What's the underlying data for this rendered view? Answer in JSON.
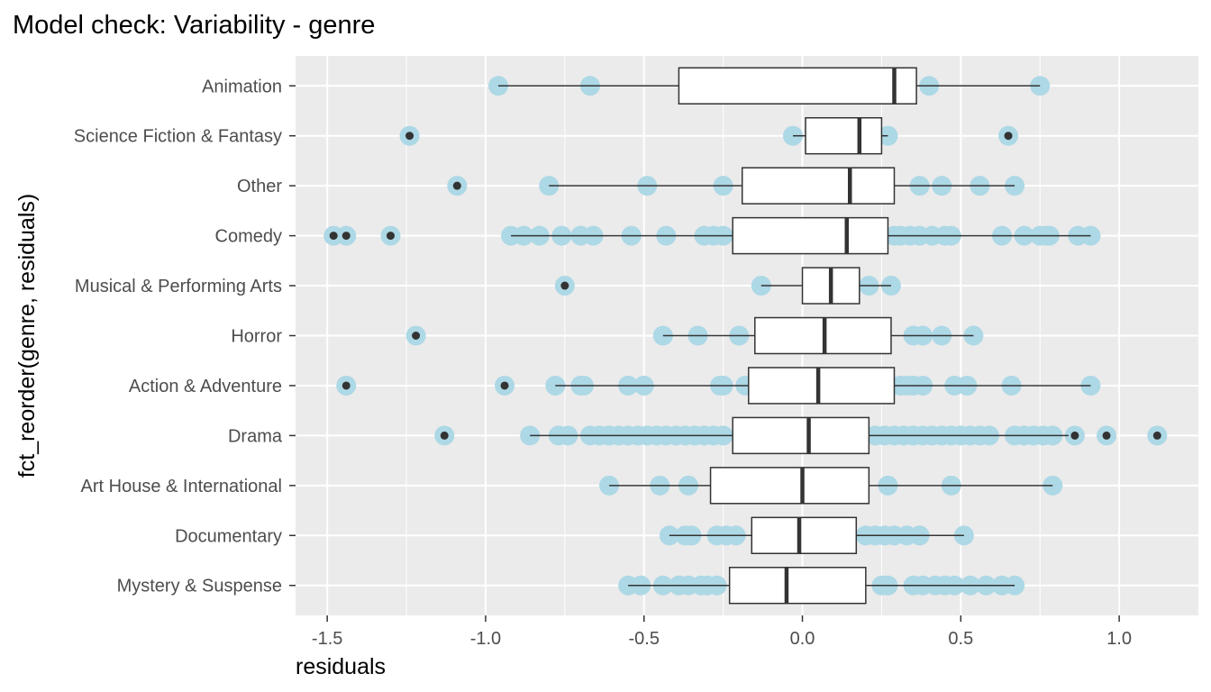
{
  "chart_data": {
    "type": "boxplot",
    "title": "Model check: Variability - genre",
    "xlabel": "residuals",
    "ylabel": "fct_reorder(genre, residuals)",
    "xlim": [
      -1.6,
      1.25
    ],
    "xticks": [
      -1.5,
      -1.0,
      -0.5,
      0.0,
      0.5,
      1.0
    ],
    "xtick_labels": [
      "-1.5",
      "-1.0",
      "-0.5",
      "0.0",
      "0.5",
      "1.0"
    ],
    "grid": true,
    "colors": {
      "panel": "#ebebeb",
      "grid": "#ffffff",
      "points": "#add8e6",
      "box_fill": "#ffffff",
      "box_line": "#333333",
      "outlier": "#333333"
    },
    "categories": [
      "Animation",
      "Science Fiction & Fantasy",
      "Other",
      "Comedy",
      "Musical & Performing Arts",
      "Horror",
      "Action & Adventure",
      "Drama",
      "Art House & International",
      "Documentary",
      "Mystery & Suspense"
    ],
    "boxes": [
      {
        "category": "Animation",
        "whisker_low": -0.96,
        "q1": -0.39,
        "median": 0.29,
        "q3": 0.36,
        "whisker_high": 0.75,
        "outliers": []
      },
      {
        "category": "Science Fiction & Fantasy",
        "whisker_low": -0.03,
        "q1": 0.01,
        "median": 0.18,
        "q3": 0.25,
        "whisker_high": 0.27,
        "outliers": [
          -1.24,
          0.65
        ]
      },
      {
        "category": "Other",
        "whisker_low": -0.8,
        "q1": -0.19,
        "median": 0.15,
        "q3": 0.29,
        "whisker_high": 0.67,
        "outliers": [
          -1.09
        ]
      },
      {
        "category": "Comedy",
        "whisker_low": -0.92,
        "q1": -0.22,
        "median": 0.14,
        "q3": 0.27,
        "whisker_high": 0.91,
        "outliers": [
          -1.48,
          -1.44,
          -1.3
        ]
      },
      {
        "category": "Musical & Performing Arts",
        "whisker_low": -0.13,
        "q1": 0.0,
        "median": 0.09,
        "q3": 0.18,
        "whisker_high": 0.28,
        "outliers": [
          -0.75
        ]
      },
      {
        "category": "Horror",
        "whisker_low": -0.44,
        "q1": -0.15,
        "median": 0.07,
        "q3": 0.28,
        "whisker_high": 0.54,
        "outliers": [
          -1.22
        ]
      },
      {
        "category": "Action & Adventure",
        "whisker_low": -0.78,
        "q1": -0.17,
        "median": 0.05,
        "q3": 0.29,
        "whisker_high": 0.91,
        "outliers": [
          -1.44,
          -0.94
        ]
      },
      {
        "category": "Drama",
        "whisker_low": -0.86,
        "q1": -0.22,
        "median": 0.02,
        "q3": 0.21,
        "whisker_high": 0.84,
        "outliers": [
          -1.13,
          0.86,
          0.96,
          1.12
        ]
      },
      {
        "category": "Art House & International",
        "whisker_low": -0.61,
        "q1": -0.29,
        "median": 0.0,
        "q3": 0.21,
        "whisker_high": 0.79,
        "outliers": []
      },
      {
        "category": "Documentary",
        "whisker_low": -0.42,
        "q1": -0.16,
        "median": -0.01,
        "q3": 0.17,
        "whisker_high": 0.51,
        "outliers": []
      },
      {
        "category": "Mystery & Suspense",
        "whisker_low": -0.55,
        "q1": -0.23,
        "median": -0.05,
        "q3": 0.2,
        "whisker_high": 0.67,
        "outliers": []
      }
    ],
    "points": [
      {
        "category": "Animation",
        "x": [
          -0.96,
          -0.67,
          0.4,
          0.75
        ]
      },
      {
        "category": "Science Fiction & Fantasy",
        "x": [
          -1.24,
          -0.03,
          0.27,
          0.65
        ]
      },
      {
        "category": "Other",
        "x": [
          -1.09,
          -0.8,
          -0.49,
          -0.25,
          0.37,
          0.44,
          0.56,
          0.67
        ]
      },
      {
        "category": "Comedy",
        "x": [
          -1.48,
          -1.44,
          -1.3,
          -0.92,
          -0.88,
          -0.83,
          -0.76,
          -0.7,
          -0.66,
          -0.54,
          -0.43,
          -0.31,
          -0.28,
          -0.25,
          0.29,
          0.31,
          0.34,
          0.37,
          0.41,
          0.45,
          0.47,
          0.63,
          0.7,
          0.75,
          0.77,
          0.78,
          0.87,
          0.91
        ]
      },
      {
        "category": "Musical & Performing Arts",
        "x": [
          -0.75,
          -0.13,
          0.21,
          0.28
        ]
      },
      {
        "category": "Horror",
        "x": [
          -1.22,
          -0.44,
          -0.33,
          -0.2,
          0.35,
          0.38,
          0.44,
          0.54
        ]
      },
      {
        "category": "Action & Adventure",
        "x": [
          -1.44,
          -0.94,
          -0.78,
          -0.7,
          -0.69,
          -0.55,
          -0.5,
          -0.26,
          -0.25,
          -0.18,
          0.31,
          0.33,
          0.35,
          0.38,
          0.48,
          0.52,
          0.66,
          0.91
        ]
      },
      {
        "category": "Drama",
        "x": [
          -1.13,
          -0.86,
          -0.77,
          -0.74,
          -0.67,
          -0.64,
          -0.61,
          -0.58,
          -0.55,
          -0.52,
          -0.49,
          -0.46,
          -0.43,
          -0.4,
          -0.37,
          -0.34,
          -0.31,
          -0.28,
          -0.25,
          0.23,
          0.26,
          0.29,
          0.32,
          0.35,
          0.38,
          0.41,
          0.44,
          0.47,
          0.5,
          0.53,
          0.56,
          0.59,
          0.67,
          0.7,
          0.73,
          0.76,
          0.79,
          0.86,
          0.96,
          1.12
        ]
      },
      {
        "category": "Art House & International",
        "x": [
          -0.61,
          -0.45,
          -0.36,
          0.27,
          0.47,
          0.79
        ]
      },
      {
        "category": "Documentary",
        "x": [
          -0.42,
          -0.37,
          -0.35,
          -0.27,
          -0.24,
          -0.21,
          0.2,
          0.23,
          0.26,
          0.29,
          0.33,
          0.37,
          0.51
        ]
      },
      {
        "category": "Mystery & Suspense",
        "x": [
          -0.55,
          -0.51,
          -0.44,
          -0.39,
          -0.36,
          -0.32,
          -0.3,
          -0.27,
          0.25,
          0.27,
          0.35,
          0.38,
          0.42,
          0.45,
          0.48,
          0.53,
          0.58,
          0.63,
          0.67
        ]
      }
    ]
  }
}
